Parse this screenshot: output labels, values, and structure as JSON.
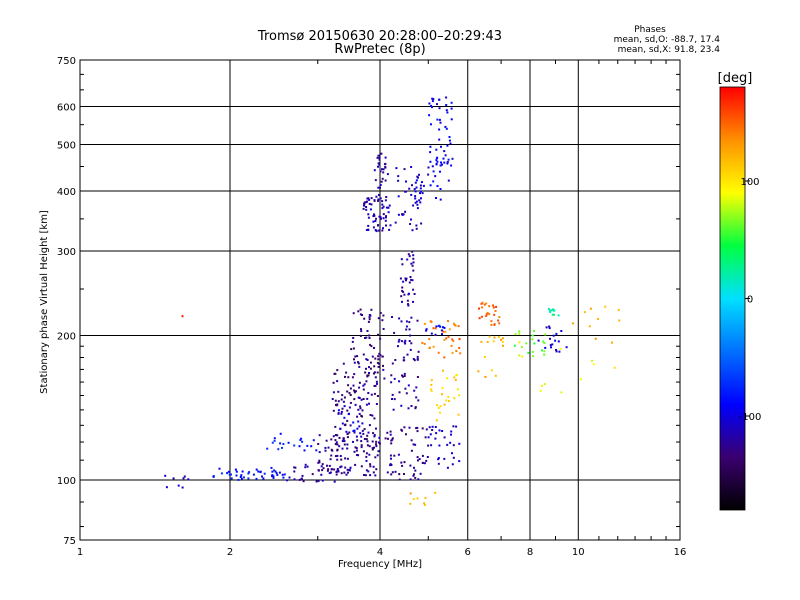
{
  "title_line1": "Tromsø 20150630 20:28:00–20:29:43",
  "title_line2": "RwPretec (8p)",
  "stats": {
    "heading": "Phases",
    "line_o": "mean, sd,O: -88.7, 17.4",
    "line_x": "mean, sd,X: 91.8, 23.4"
  },
  "colorbar": {
    "label": "[deg]",
    "min": -180,
    "max": 180,
    "ticks": [
      {
        "value": 100,
        "label": "100"
      },
      {
        "value": 0,
        "label": "0"
      },
      {
        "value": -100,
        "label": "-100"
      }
    ],
    "stops": [
      "#000000",
      "#3a0070",
      "#0000ff",
      "#0070ff",
      "#00e0ff",
      "#00ff40",
      "#ffff00",
      "#ff9000",
      "#ff0000"
    ]
  },
  "chart_data": {
    "type": "scatter",
    "xlabel": "Frequency [MHz]",
    "ylabel": "Stationary phase Virtual Height [km]",
    "x_scale": "log2",
    "y_scale": "log",
    "xlim": [
      1,
      16
    ],
    "ylim": [
      75,
      750
    ],
    "xticks": [
      {
        "v": 1,
        "l": "1",
        "grid": false
      },
      {
        "v": 2,
        "l": "2",
        "grid": true
      },
      {
        "v": 4,
        "l": "4",
        "grid": true
      },
      {
        "v": 6,
        "l": "6",
        "grid": true
      },
      {
        "v": 8,
        "l": "8",
        "grid": true
      },
      {
        "v": 10,
        "l": "10",
        "grid": true
      },
      {
        "v": 16,
        "l": "16",
        "grid": false
      }
    ],
    "yticks": [
      {
        "v": 75,
        "l": "75",
        "grid": false
      },
      {
        "v": 100,
        "l": "100",
        "grid": true
      },
      {
        "v": 200,
        "l": "200",
        "grid": true
      },
      {
        "v": 300,
        "l": "300",
        "grid": true
      },
      {
        "v": 400,
        "l": "400",
        "grid": true
      },
      {
        "v": 500,
        "l": "500",
        "grid": true
      },
      {
        "v": 600,
        "l": "600",
        "grid": true
      },
      {
        "v": 750,
        "l": "750",
        "grid": false
      }
    ],
    "color_by": "phase [deg]",
    "clusters": [
      {
        "f": [
          1.45,
          1.65
        ],
        "h": [
          95,
          103
        ],
        "phase": -110,
        "n": 8
      },
      {
        "f": [
          1.6,
          1.62
        ],
        "h": [
          218,
          222
        ],
        "phase": 160,
        "n": 1
      },
      {
        "f": [
          1.85,
          2.6
        ],
        "h": [
          100,
          106
        ],
        "phase": -85,
        "n": 45
      },
      {
        "f": [
          2.3,
          3.0
        ],
        "h": [
          115,
          125
        ],
        "phase": -80,
        "n": 20
      },
      {
        "f": [
          2.6,
          3.5
        ],
        "h": [
          99,
          108
        ],
        "phase": -120,
        "n": 40
      },
      {
        "f": [
          3.0,
          4.0
        ],
        "h": [
          102,
          125
        ],
        "phase": -125,
        "n": 90
      },
      {
        "f": [
          3.2,
          4.0
        ],
        "h": [
          115,
          175
        ],
        "phase": -130,
        "n": 110
      },
      {
        "f": [
          3.5,
          4.1
        ],
        "h": [
          150,
          230
        ],
        "phase": -130,
        "n": 70
      },
      {
        "f": [
          3.3,
          3.7
        ],
        "h": [
          125,
          150
        ],
        "phase": -100,
        "n": 20
      },
      {
        "f": [
          3.7,
          4.2
        ],
        "h": [
          330,
          390
        ],
        "phase": -115,
        "n": 60
      },
      {
        "f": [
          3.9,
          4.15
        ],
        "h": [
          380,
          480
        ],
        "phase": -120,
        "n": 30
      },
      {
        "f": [
          4.1,
          5.0
        ],
        "h": [
          100,
          130
        ],
        "phase": -125,
        "n": 60
      },
      {
        "f": [
          4.2,
          4.8
        ],
        "h": [
          140,
          220
        ],
        "phase": -120,
        "n": 60
      },
      {
        "f": [
          4.4,
          4.7
        ],
        "h": [
          230,
          300
        ],
        "phase": -120,
        "n": 35
      },
      {
        "f": [
          4.3,
          4.9
        ],
        "h": [
          330,
          450
        ],
        "phase": -110,
        "n": 40
      },
      {
        "f": [
          4.7,
          5.5
        ],
        "h": [
          380,
          460
        ],
        "phase": -95,
        "n": 25
      },
      {
        "f": [
          5.0,
          5.6
        ],
        "h": [
          450,
          630
        ],
        "phase": -95,
        "n": 50
      },
      {
        "f": [
          5.0,
          5.8
        ],
        "h": [
          105,
          130
        ],
        "phase": -110,
        "n": 30
      },
      {
        "f": [
          4.8,
          5.8
        ],
        "h": [
          180,
          215
        ],
        "phase": 140,
        "n": 35
      },
      {
        "f": [
          5.0,
          5.8
        ],
        "h": [
          130,
          170
        ],
        "phase": 110,
        "n": 25
      },
      {
        "f": [
          4.9,
          5.4
        ],
        "h": [
          200,
          210
        ],
        "phase": -90,
        "n": 12
      },
      {
        "f": [
          4.4,
          5.2
        ],
        "h": [
          85,
          95
        ],
        "phase": 120,
        "n": 8
      },
      {
        "f": [
          6.3,
          7.0
        ],
        "h": [
          210,
          235
        ],
        "phase": 150,
        "n": 25
      },
      {
        "f": [
          6.3,
          7.1
        ],
        "h": [
          160,
          200
        ],
        "phase": 120,
        "n": 15
      },
      {
        "f": [
          7.3,
          8.6
        ],
        "h": [
          180,
          205
        ],
        "phase": 60,
        "n": 20
      },
      {
        "f": [
          8.3,
          9.5
        ],
        "h": [
          185,
          210
        ],
        "phase": -100,
        "n": 18
      },
      {
        "f": [
          8.7,
          9.2
        ],
        "h": [
          220,
          230
        ],
        "phase": 20,
        "n": 10
      },
      {
        "f": [
          9.5,
          12.5
        ],
        "h": [
          190,
          230
        ],
        "phase": 120,
        "n": 10
      },
      {
        "f": [
          7.0,
          12.0
        ],
        "h": [
          150,
          200
        ],
        "phase": 90,
        "n": 12
      }
    ]
  }
}
